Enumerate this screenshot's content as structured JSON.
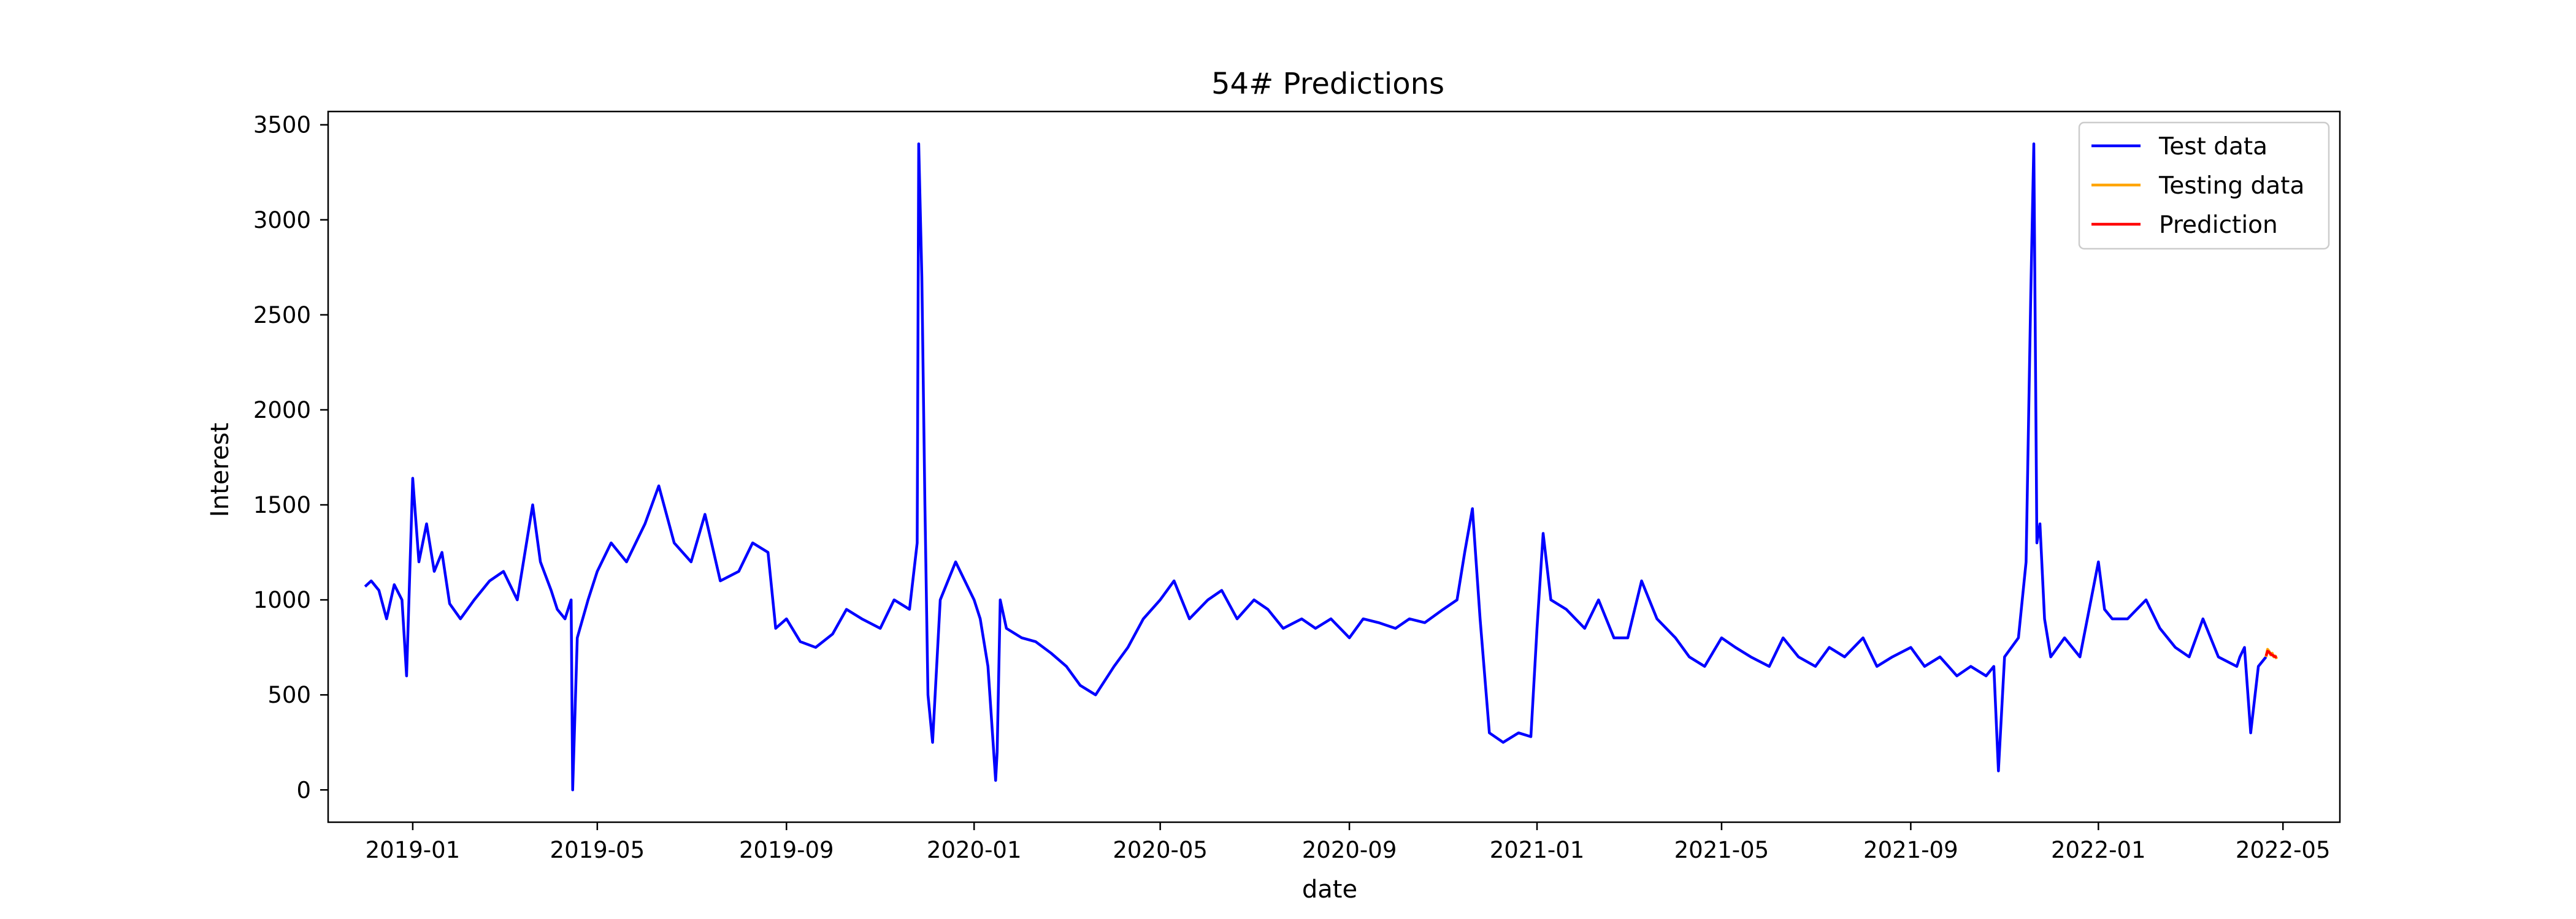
{
  "chart_data": {
    "type": "line",
    "title": "54# Predictions",
    "xlabel": "date",
    "ylabel": "Interest",
    "xlim": [
      "2018-11-07",
      "2022-06-07"
    ],
    "ylim": [
      -170,
      3570
    ],
    "x_ticks": [
      "2019-01",
      "2019-05",
      "2019-09",
      "2020-01",
      "2020-05",
      "2020-09",
      "2021-01",
      "2021-05",
      "2021-09",
      "2022-01",
      "2022-05"
    ],
    "y_ticks": [
      0,
      500,
      1000,
      1500,
      2000,
      2500,
      3000,
      3500
    ],
    "grid": false,
    "legend_position": "top-right",
    "series": [
      {
        "name": "Test data",
        "color": "#0000ff",
        "x": [
          "2018-12-01",
          "2018-12-05",
          "2018-12-10",
          "2018-12-15",
          "2018-12-20",
          "2018-12-25",
          "2018-12-28",
          "2019-01-01",
          "2019-01-05",
          "2019-01-10",
          "2019-01-15",
          "2019-01-20",
          "2019-01-25",
          "2019-02-01",
          "2019-02-10",
          "2019-02-20",
          "2019-03-01",
          "2019-03-10",
          "2019-03-20",
          "2019-03-25",
          "2019-04-01",
          "2019-04-05",
          "2019-04-10",
          "2019-04-14",
          "2019-04-15",
          "2019-04-18",
          "2019-04-25",
          "2019-05-01",
          "2019-05-10",
          "2019-05-20",
          "2019-06-01",
          "2019-06-10",
          "2019-06-20",
          "2019-07-01",
          "2019-07-10",
          "2019-07-20",
          "2019-08-01",
          "2019-08-10",
          "2019-08-20",
          "2019-08-25",
          "2019-09-01",
          "2019-09-10",
          "2019-09-20",
          "2019-10-01",
          "2019-10-10",
          "2019-10-20",
          "2019-11-01",
          "2019-11-10",
          "2019-11-20",
          "2019-11-25",
          "2019-11-26",
          "2019-11-28",
          "2019-11-30",
          "2019-12-02",
          "2019-12-05",
          "2019-12-10",
          "2019-12-20",
          "2020-01-01",
          "2020-01-05",
          "2020-01-10",
          "2020-01-15",
          "2020-01-16",
          "2020-01-18",
          "2020-01-22",
          "2020-02-01",
          "2020-02-10",
          "2020-02-20",
          "2020-03-01",
          "2020-03-10",
          "2020-03-20",
          "2020-04-01",
          "2020-04-10",
          "2020-04-20",
          "2020-05-01",
          "2020-05-10",
          "2020-05-20",
          "2020-06-01",
          "2020-06-10",
          "2020-06-20",
          "2020-07-01",
          "2020-07-10",
          "2020-07-20",
          "2020-08-01",
          "2020-08-10",
          "2020-08-20",
          "2020-09-01",
          "2020-09-10",
          "2020-09-20",
          "2020-10-01",
          "2020-10-10",
          "2020-10-20",
          "2020-11-01",
          "2020-11-10",
          "2020-11-15",
          "2020-11-20",
          "2020-11-25",
          "2020-12-01",
          "2020-12-10",
          "2020-12-20",
          "2020-12-28",
          "2021-01-01",
          "2021-01-05",
          "2021-01-10",
          "2021-01-20",
          "2021-02-01",
          "2021-02-10",
          "2021-02-20",
          "2021-03-01",
          "2021-03-10",
          "2021-03-20",
          "2021-04-01",
          "2021-04-10",
          "2021-04-20",
          "2021-05-01",
          "2021-05-10",
          "2021-05-20",
          "2021-06-01",
          "2021-06-10",
          "2021-06-20",
          "2021-07-01",
          "2021-07-10",
          "2021-07-20",
          "2021-08-01",
          "2021-08-10",
          "2021-08-20",
          "2021-09-01",
          "2021-09-10",
          "2021-09-20",
          "2021-10-01",
          "2021-10-10",
          "2021-10-20",
          "2021-10-25",
          "2021-10-28",
          "2021-11-01",
          "2021-11-10",
          "2021-11-15",
          "2021-11-18",
          "2021-11-20",
          "2021-11-22",
          "2021-11-24",
          "2021-11-27",
          "2021-12-01",
          "2021-12-10",
          "2021-12-20",
          "2022-01-01",
          "2022-01-05",
          "2022-01-10",
          "2022-01-20",
          "2022-02-01",
          "2022-02-10",
          "2022-02-20",
          "2022-03-01",
          "2022-03-10",
          "2022-03-20",
          "2022-04-01",
          "2022-04-03",
          "2022-04-06",
          "2022-04-10",
          "2022-04-15",
          "2022-04-20"
        ],
        "y": [
          1070,
          1100,
          1050,
          900,
          1080,
          1000,
          600,
          1640,
          1200,
          1400,
          1150,
          1250,
          980,
          900,
          1000,
          1100,
          1150,
          1000,
          1500,
          1200,
          1050,
          950,
          900,
          1000,
          0,
          800,
          1000,
          1150,
          1300,
          1200,
          1400,
          1600,
          1300,
          1200,
          1450,
          1100,
          1150,
          1300,
          1250,
          850,
          900,
          780,
          750,
          820,
          950,
          900,
          850,
          1000,
          950,
          1300,
          3400,
          2700,
          1500,
          500,
          250,
          1000,
          1200,
          1000,
          900,
          650,
          50,
          200,
          1000,
          850,
          800,
          780,
          720,
          650,
          550,
          500,
          650,
          750,
          900,
          1000,
          1100,
          900,
          1000,
          1050,
          900,
          1000,
          950,
          850,
          900,
          850,
          900,
          800,
          900,
          880,
          850,
          900,
          880,
          950,
          1000,
          1250,
          1480,
          900,
          300,
          250,
          300,
          280,
          850,
          1350,
          1000,
          950,
          850,
          1000,
          800,
          800,
          1100,
          900,
          800,
          700,
          650,
          800,
          750,
          700,
          650,
          800,
          700,
          650,
          750,
          700,
          800,
          650,
          700,
          750,
          650,
          700,
          600,
          650,
          600,
          650,
          100,
          700,
          800,
          1200,
          2600,
          3400,
          1300,
          1400,
          900,
          700,
          800,
          700,
          1200,
          950,
          900,
          900,
          1000,
          850,
          750,
          700,
          900,
          700,
          650,
          700,
          750,
          300,
          650,
          700
        ]
      },
      {
        "name": "Testing data",
        "color": "#ffa500",
        "x": [
          "2022-04-20",
          "2022-04-21",
          "2022-04-22",
          "2022-04-23",
          "2022-04-24",
          "2022-04-25",
          "2022-04-26",
          "2022-04-27"
        ],
        "y": [
          700,
          740,
          730,
          710,
          720,
          700,
          705,
          690
        ]
      },
      {
        "name": "Prediction",
        "color": "#ff0000",
        "x": [
          "2022-04-20",
          "2022-04-21",
          "2022-04-22",
          "2022-04-23",
          "2022-04-24",
          "2022-04-25",
          "2022-04-26",
          "2022-04-27"
        ],
        "y": [
          705,
          730,
          725,
          715,
          710,
          705,
          700,
          700
        ]
      }
    ]
  }
}
